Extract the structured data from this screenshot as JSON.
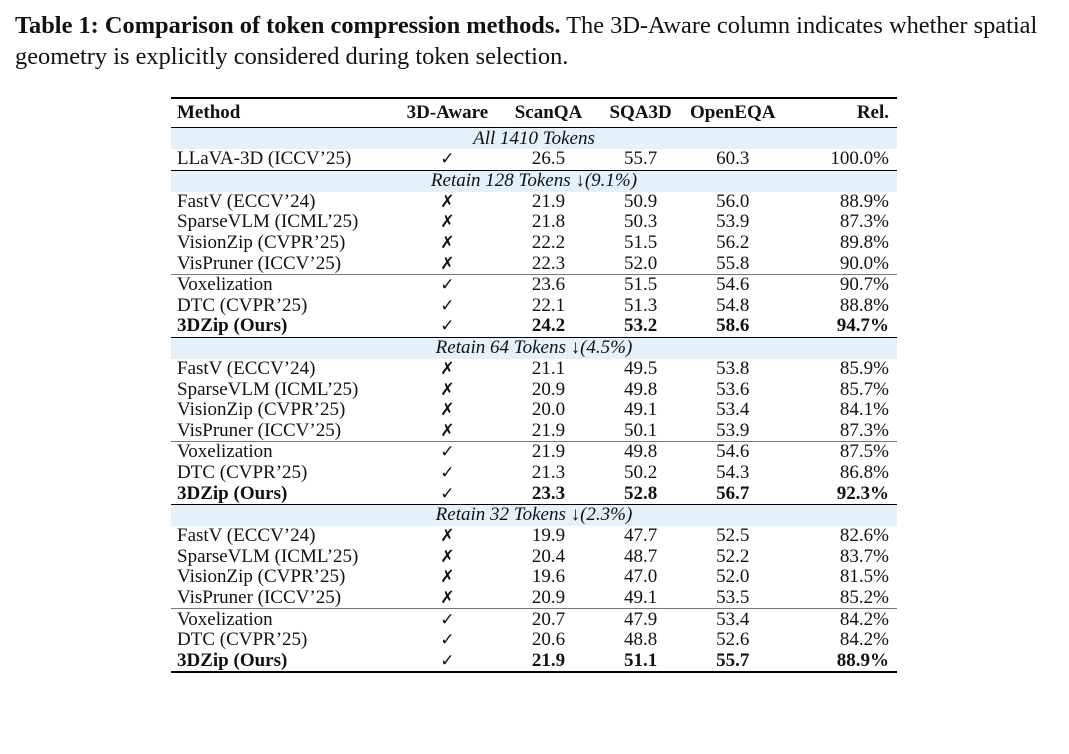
{
  "caption": {
    "label": "Table 1: Comparison of token compression methods.",
    "text": " The 3D-Aware column indicates whether spatial geometry is explicitly considered during token selection."
  },
  "table": {
    "headers": [
      "Method",
      "3D-Aware",
      "ScanQA",
      "SQA3D",
      "OpenEQA",
      "Rel."
    ],
    "sections": [
      {
        "title": "All 1410 Tokens",
        "groups": [
          [
            {
              "method": "LLaVA-3D (ICCV’25)",
              "aware": "✓",
              "scanqa": "26.5",
              "sqa3d": "55.7",
              "openeqa": "60.3",
              "rel": "100.0%",
              "bold": false
            }
          ]
        ]
      },
      {
        "title": "Retain 128 Tokens ↓(9.1%)",
        "groups": [
          [
            {
              "method": "FastV (ECCV’24)",
              "aware": "✗",
              "scanqa": "21.9",
              "sqa3d": "50.9",
              "openeqa": "56.0",
              "rel": "88.9%",
              "bold": false
            },
            {
              "method": "SparseVLM (ICML’25)",
              "aware": "✗",
              "scanqa": "21.8",
              "sqa3d": "50.3",
              "openeqa": "53.9",
              "rel": "87.3%",
              "bold": false
            },
            {
              "method": "VisionZip (CVPR’25)",
              "aware": "✗",
              "scanqa": "22.2",
              "sqa3d": "51.5",
              "openeqa": "56.2",
              "rel": "89.8%",
              "bold": false
            },
            {
              "method": "VisPruner (ICCV’25)",
              "aware": "✗",
              "scanqa": "22.3",
              "sqa3d": "52.0",
              "openeqa": "55.8",
              "rel": "90.0%",
              "bold": false
            }
          ],
          [
            {
              "method": "Voxelization",
              "aware": "✓",
              "scanqa": "23.6",
              "sqa3d": "51.5",
              "openeqa": "54.6",
              "rel": "90.7%",
              "bold": false
            },
            {
              "method": "DTC (CVPR’25)",
              "aware": "✓",
              "scanqa": "22.1",
              "sqa3d": "51.3",
              "openeqa": "54.8",
              "rel": "88.8%",
              "bold": false
            },
            {
              "method": "3DZip (Ours)",
              "aware": "✓",
              "scanqa": "24.2",
              "sqa3d": "53.2",
              "openeqa": "58.6",
              "rel": "94.7%",
              "bold": true
            }
          ]
        ]
      },
      {
        "title": "Retain 64 Tokens ↓(4.5%)",
        "groups": [
          [
            {
              "method": "FastV (ECCV’24)",
              "aware": "✗",
              "scanqa": "21.1",
              "sqa3d": "49.5",
              "openeqa": "53.8",
              "rel": "85.9%",
              "bold": false
            },
            {
              "method": "SparseVLM (ICML’25)",
              "aware": "✗",
              "scanqa": "20.9",
              "sqa3d": "49.8",
              "openeqa": "53.6",
              "rel": "85.7%",
              "bold": false
            },
            {
              "method": "VisionZip (CVPR’25)",
              "aware": "✗",
              "scanqa": "20.0",
              "sqa3d": "49.1",
              "openeqa": "53.4",
              "rel": "84.1%",
              "bold": false
            },
            {
              "method": "VisPruner (ICCV’25)",
              "aware": "✗",
              "scanqa": "21.9",
              "sqa3d": "50.1",
              "openeqa": "53.9",
              "rel": "87.3%",
              "bold": false
            }
          ],
          [
            {
              "method": "Voxelization",
              "aware": "✓",
              "scanqa": "21.9",
              "sqa3d": "49.8",
              "openeqa": "54.6",
              "rel": "87.5%",
              "bold": false
            },
            {
              "method": "DTC (CVPR’25)",
              "aware": "✓",
              "scanqa": "21.3",
              "sqa3d": "50.2",
              "openeqa": "54.3",
              "rel": "86.8%",
              "bold": false
            },
            {
              "method": "3DZip (Ours)",
              "aware": "✓",
              "scanqa": "23.3",
              "sqa3d": "52.8",
              "openeqa": "56.7",
              "rel": "92.3%",
              "bold": true
            }
          ]
        ]
      },
      {
        "title": "Retain 32 Tokens ↓(2.3%)",
        "groups": [
          [
            {
              "method": "FastV (ECCV’24)",
              "aware": "✗",
              "scanqa": "19.9",
              "sqa3d": "47.7",
              "openeqa": "52.5",
              "rel": "82.6%",
              "bold": false
            },
            {
              "method": "SparseVLM (ICML’25)",
              "aware": "✗",
              "scanqa": "20.4",
              "sqa3d": "48.7",
              "openeqa": "52.2",
              "rel": "83.7%",
              "bold": false
            },
            {
              "method": "VisionZip (CVPR’25)",
              "aware": "✗",
              "scanqa": "19.6",
              "sqa3d": "47.0",
              "openeqa": "52.0",
              "rel": "81.5%",
              "bold": false
            },
            {
              "method": "VisPruner (ICCV’25)",
              "aware": "✗",
              "scanqa": "20.9",
              "sqa3d": "49.1",
              "openeqa": "53.5",
              "rel": "85.2%",
              "bold": false
            }
          ],
          [
            {
              "method": "Voxelization",
              "aware": "✓",
              "scanqa": "20.7",
              "sqa3d": "47.9",
              "openeqa": "53.4",
              "rel": "84.2%",
              "bold": false
            },
            {
              "method": "DTC (CVPR’25)",
              "aware": "✓",
              "scanqa": "20.6",
              "sqa3d": "48.8",
              "openeqa": "52.6",
              "rel": "84.2%",
              "bold": false
            },
            {
              "method": "3DZip (Ours)",
              "aware": "✓",
              "scanqa": "21.9",
              "sqa3d": "51.1",
              "openeqa": "55.7",
              "rel": "88.9%",
              "bold": true
            }
          ]
        ]
      }
    ]
  }
}
